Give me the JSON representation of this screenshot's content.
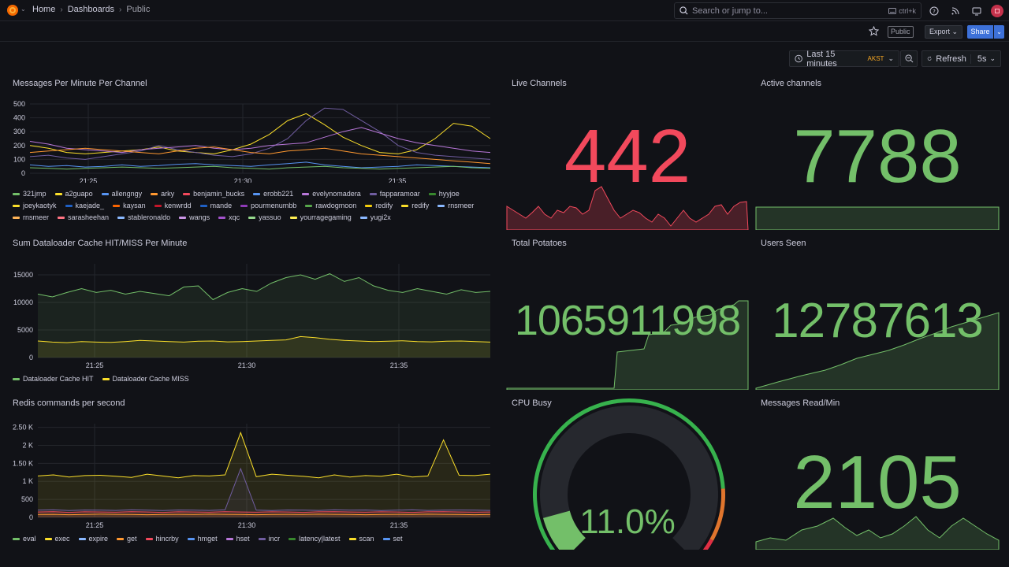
{
  "breadcrumb": [
    "Home",
    "Dashboards",
    "Public"
  ],
  "search": {
    "placeholder": "Search or jump to...",
    "shortcut": "ctrl+k"
  },
  "toolbar": {
    "public_label": "Public",
    "export_label": "Export",
    "share_label": "Share"
  },
  "time": {
    "range_label": "Last 15 minutes",
    "timezone": "AKST",
    "refresh_label": "Refresh",
    "refresh_interval": "5s"
  },
  "panels": {
    "messages": {
      "title": "Messages Per Minute Per Channel",
      "legend": [
        {
          "name": "321jmp",
          "color": "#73bf69"
        },
        {
          "name": "a2guapo",
          "color": "#fade2a"
        },
        {
          "name": "allengngy",
          "color": "#5794f2"
        },
        {
          "name": "arky",
          "color": "#ff9830"
        },
        {
          "name": "benjamin_bucks",
          "color": "#f2495c"
        },
        {
          "name": "erobb221",
          "color": "#5794f2"
        },
        {
          "name": "evelynomadera",
          "color": "#b877d9"
        },
        {
          "name": "fapparamoar",
          "color": "#705da0"
        },
        {
          "name": "hyyjoe",
          "color": "#37872d"
        },
        {
          "name": "joeykaotyk",
          "color": "#fade2a"
        },
        {
          "name": "kaejade_",
          "color": "#1f60c4"
        },
        {
          "name": "kaysan",
          "color": "#fa6400"
        },
        {
          "name": "kenwrdd",
          "color": "#c4162a"
        },
        {
          "name": "mande",
          "color": "#1f60c4"
        },
        {
          "name": "pourmenumbb",
          "color": "#8f3bb8"
        },
        {
          "name": "rawdogmoon",
          "color": "#56a64b"
        },
        {
          "name": "redify",
          "color": "#f2cc0c"
        },
        {
          "name": "redify",
          "color": "#fade2a"
        },
        {
          "name": "rnsmeer",
          "color": "#8ab8ff"
        },
        {
          "name": "rnsmeer",
          "color": "#ffb357"
        },
        {
          "name": "sarasheehan",
          "color": "#ff7383"
        },
        {
          "name": "stableronaldo",
          "color": "#8ab8ff"
        },
        {
          "name": "wangs",
          "color": "#ca95e5"
        },
        {
          "name": "xqc",
          "color": "#a352cc"
        },
        {
          "name": "yassuo",
          "color": "#96d98d"
        },
        {
          "name": "yourragegaming",
          "color": "#ffee52"
        },
        {
          "name": "yugi2x",
          "color": "#8ab8ff"
        }
      ]
    },
    "cache": {
      "title": "Sum Dataloader Cache HIT/MISS Per Minute",
      "legend": [
        {
          "name": "Dataloader Cache HIT",
          "color": "#73bf69"
        },
        {
          "name": "Dataloader Cache MISS",
          "color": "#fade2a"
        }
      ]
    },
    "redis": {
      "title": "Redis commands per second",
      "legend": [
        {
          "name": "eval",
          "color": "#73bf69"
        },
        {
          "name": "exec",
          "color": "#fade2a"
        },
        {
          "name": "expire",
          "color": "#8ab8ff"
        },
        {
          "name": "get",
          "color": "#ff9830"
        },
        {
          "name": "hincrby",
          "color": "#f2495c"
        },
        {
          "name": "hmget",
          "color": "#5794f2"
        },
        {
          "name": "hset",
          "color": "#b877d9"
        },
        {
          "name": "incr",
          "color": "#705da0"
        },
        {
          "name": "latency|latest",
          "color": "#37872d"
        },
        {
          "name": "scan",
          "color": "#fade2a"
        },
        {
          "name": "set",
          "color": "#5794f2"
        }
      ]
    },
    "live": {
      "title": "Live Channels",
      "value": "442",
      "color": "#f2495c"
    },
    "active": {
      "title": "Active channels",
      "value": "7788",
      "color": "#73bf69"
    },
    "potatoes": {
      "title": "Total Potatoes",
      "value": "1065911998",
      "color": "#73bf69"
    },
    "users": {
      "title": "Users Seen",
      "value": "12787613",
      "color": "#73bf69"
    },
    "cpu": {
      "title": "CPU Busy",
      "value": "11.0%",
      "fraction": 0.11,
      "color": "#73bf69"
    },
    "msgread": {
      "title": "Messages Read/Min",
      "value": "2105",
      "color": "#73bf69"
    }
  },
  "chart_data": [
    {
      "type": "line",
      "title": "Messages Per Minute Per Channel",
      "x_ticks": [
        "21:25",
        "21:30",
        "21:35"
      ],
      "y_ticks": [
        "0",
        "100",
        "200",
        "300",
        "400",
        "500"
      ],
      "ylim": [
        0,
        500
      ],
      "series": [
        {
          "name": "a2guapo",
          "values": [
            200,
            180,
            150,
            140,
            150,
            160,
            170,
            190,
            160,
            150,
            140,
            170,
            210,
            280,
            380,
            430,
            350,
            260,
            200,
            150,
            140,
            170,
            250,
            360,
            340,
            250
          ]
        },
        {
          "name": "fapparamoar",
          "values": [
            120,
            130,
            110,
            100,
            120,
            140,
            160,
            200,
            170,
            150,
            130,
            120,
            140,
            180,
            250,
            380,
            470,
            460,
            380,
            300,
            200,
            150,
            130,
            120,
            110,
            100
          ]
        },
        {
          "name": "evelynomadera",
          "values": [
            230,
            210,
            180,
            170,
            160,
            150,
            170,
            180,
            190,
            200,
            180,
            170,
            180,
            200,
            210,
            220,
            260,
            300,
            330,
            290,
            250,
            220,
            200,
            180,
            160,
            150
          ]
        },
        {
          "name": "arky",
          "values": [
            150,
            160,
            170,
            180,
            170,
            160,
            150,
            140,
            160,
            180,
            190,
            170,
            150,
            140,
            160,
            170,
            180,
            160,
            140,
            130,
            120,
            110,
            100,
            90,
            80,
            70
          ]
        },
        {
          "name": "allengngy",
          "values": [
            60,
            50,
            55,
            45,
            50,
            60,
            50,
            55,
            65,
            70,
            60,
            55,
            50,
            60,
            70,
            80,
            60,
            50,
            40,
            45,
            50,
            60,
            55,
            50,
            45,
            40
          ]
        },
        {
          "name": "321jmp",
          "values": [
            40,
            35,
            30,
            35,
            40,
            45,
            40,
            35,
            40,
            45,
            50,
            40,
            35,
            30,
            40,
            45,
            50,
            40,
            35,
            30,
            35,
            40,
            45,
            50,
            40,
            35
          ]
        }
      ]
    },
    {
      "type": "area",
      "title": "Sum Dataloader Cache HIT/MISS Per Minute",
      "x_ticks": [
        "21:25",
        "21:30",
        "21:35"
      ],
      "y_ticks": [
        "0",
        "5000",
        "10000",
        "15000"
      ],
      "ylim": [
        0,
        17000
      ],
      "series": [
        {
          "name": "Dataloader Cache HIT",
          "values": [
            11500,
            11000,
            11800,
            12500,
            11800,
            12200,
            11500,
            12000,
            11600,
            11200,
            12800,
            13000,
            10500,
            11800,
            12500,
            12000,
            13500,
            14500,
            15000,
            14200,
            15200,
            13800,
            14500,
            13000,
            12200,
            11800,
            12500,
            12000,
            11500,
            12300,
            11800,
            12000
          ]
        },
        {
          "name": "Dataloader Cache MISS",
          "values": [
            3000,
            2800,
            2700,
            2900,
            2800,
            2750,
            2900,
            3100,
            3000,
            2900,
            2800,
            2950,
            3000,
            2850,
            2900,
            3000,
            3100,
            3200,
            3800,
            3600,
            3300,
            3100,
            3000,
            2900,
            2950,
            3050,
            2900,
            2850,
            2950,
            3000,
            2900,
            2800
          ]
        }
      ]
    },
    {
      "type": "area",
      "title": "Redis commands per second",
      "x_ticks": [
        "21:25",
        "21:30",
        "21:35"
      ],
      "y_ticks": [
        "0",
        "500",
        "1 K",
        "1.50 K",
        "2 K",
        "2.50 K"
      ],
      "ylim": [
        0,
        2600
      ],
      "series": [
        {
          "name": "exec",
          "values": [
            1150,
            1180,
            1120,
            1160,
            1170,
            1140,
            1110,
            1200,
            1150,
            1100,
            1160,
            1150,
            1180,
            2350,
            1130,
            1200,
            1170,
            1140,
            1100,
            1180,
            1120,
            1160,
            1140,
            1200,
            1120,
            1150,
            2150,
            1170,
            1160,
            1200
          ]
        },
        {
          "name": "incr",
          "values": [
            200,
            210,
            190,
            205,
            200,
            195,
            210,
            200,
            190,
            205,
            200,
            195,
            210,
            1350,
            200,
            190,
            205,
            200,
            195,
            210,
            200,
            205,
            190,
            200,
            210,
            195,
            200,
            205,
            200,
            195
          ]
        },
        {
          "name": "hincrby",
          "values": [
            150,
            160,
            140,
            155,
            150,
            145,
            160,
            150,
            140,
            155,
            150,
            145,
            160,
            150,
            145,
            155,
            150,
            140,
            155,
            160,
            150,
            145,
            155,
            150,
            140,
            155,
            160,
            150,
            145,
            150
          ]
        },
        {
          "name": "get",
          "values": [
            80,
            85,
            75,
            80,
            90,
            85,
            80,
            75,
            80,
            85,
            80,
            90,
            85,
            80,
            75,
            80,
            85,
            80,
            90,
            85,
            80,
            75,
            80,
            85,
            80,
            90,
            85,
            80,
            75,
            80
          ]
        }
      ]
    }
  ]
}
